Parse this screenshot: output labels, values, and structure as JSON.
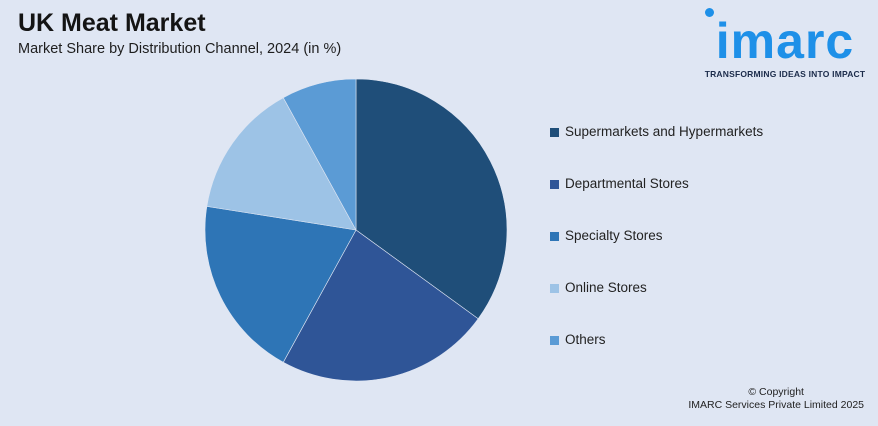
{
  "header": {
    "title": "UK Meat Market",
    "subtitle": "Market Share by Distribution Channel, 2024 (in %)"
  },
  "logo": {
    "name": "imarc",
    "tagline": "TRANSFORMING IDEAS INTO IMPACT",
    "color": "#1e90e8"
  },
  "chart_data": {
    "type": "pie",
    "title": "UK Meat Market",
    "subtitle": "Market Share by Distribution Channel, 2024 (in %)",
    "legend_position": "right",
    "start_angle_deg": 0,
    "direction": "clockwise",
    "slices": [
      {
        "label": "Supermarkets and Hypermarkets",
        "value": 35,
        "color": "#1f4e79"
      },
      {
        "label": "Departmental Stores",
        "value": 23,
        "color": "#2f5597"
      },
      {
        "label": "Specialty Stores",
        "value": 19.5,
        "color": "#2e75b6"
      },
      {
        "label": "Online Stores",
        "value": 14.5,
        "color": "#9dc3e6"
      },
      {
        "label": "Others",
        "value": 8,
        "color": "#5b9bd5"
      }
    ]
  },
  "footer": {
    "line1": "© Copyright",
    "line2": "IMARC Services Private Limited 2025"
  }
}
